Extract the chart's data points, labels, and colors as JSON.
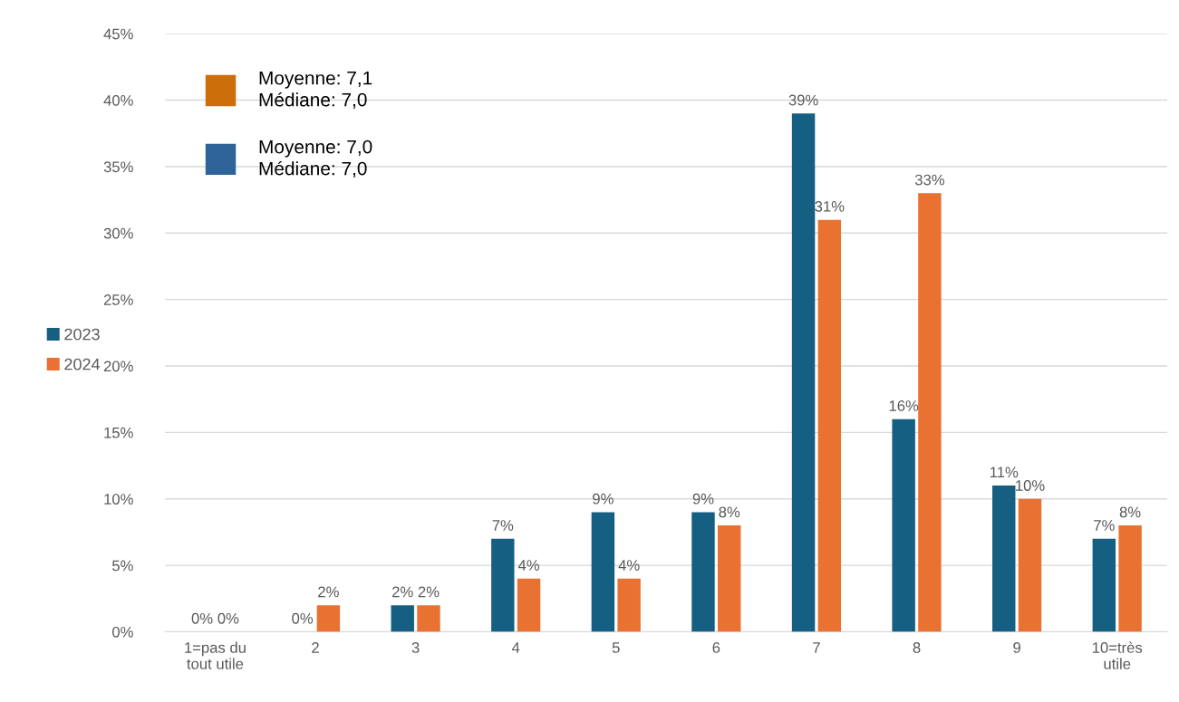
{
  "chart_data": {
    "type": "bar",
    "categories": [
      "1=pas du\ntout utile",
      "2",
      "3",
      "4",
      "5",
      "6",
      "7",
      "8",
      "9",
      "10=très\nutile"
    ],
    "series": [
      {
        "name": "2023",
        "color": "#156082",
        "values": [
          0,
          0,
          2,
          7,
          9,
          9,
          39,
          16,
          11,
          7
        ],
        "value_labels": [
          "0%",
          "0%",
          "2%",
          "7%",
          "9%",
          "9%",
          "39%",
          "16%",
          "11%",
          "7%"
        ]
      },
      {
        "name": "2024",
        "color": "#e97132",
        "values": [
          0,
          2,
          2,
          4,
          4,
          8,
          31,
          33,
          10,
          8
        ],
        "value_labels": [
          "0%",
          "2%",
          "2%",
          "4%",
          "4%",
          "8%",
          "31%",
          "33%",
          "10%",
          "8%"
        ]
      }
    ],
    "ylim": [
      0,
      45
    ],
    "yticks": [
      {
        "value": 0,
        "label": "0%"
      },
      {
        "value": 5,
        "label": "5%"
      },
      {
        "value": 10,
        "label": "10%"
      },
      {
        "value": 15,
        "label": "15%"
      },
      {
        "value": 20,
        "label": "20%"
      },
      {
        "value": 25,
        "label": "25%"
      },
      {
        "value": 30,
        "label": "30%"
      },
      {
        "value": 35,
        "label": "35%"
      },
      {
        "value": 40,
        "label": "40%"
      },
      {
        "value": 45,
        "label": "45%"
      }
    ],
    "grid": "y",
    "legend": "left",
    "annotations": [
      "Moyenne: 7,1\nMédiane: 7,0",
      "Moyenne: 7,0\nMédiane: 7,0"
    ]
  }
}
